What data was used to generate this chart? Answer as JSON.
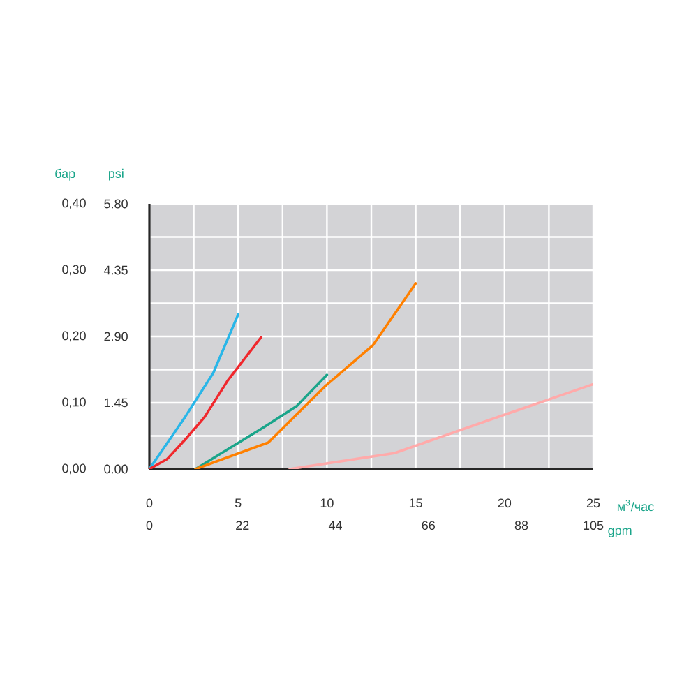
{
  "chart_data": {
    "type": "line",
    "ylabel": "бар",
    "y2label": "psi",
    "xlabel": "м$^{3}$/час",
    "x2label": "gpm",
    "xlim": [
      0,
      25
    ],
    "xticks": [
      0,
      5,
      10,
      15,
      20,
      25
    ],
    "x2lim": [
      0,
      105
    ],
    "x2ticks": [
      0,
      22,
      44,
      66,
      88,
      105
    ],
    "ylim": [
      0,
      0.4
    ],
    "yticks": [
      {
        "value": 0,
        "label": "0,00"
      },
      {
        "value": 0.1,
        "label": "0,10"
      },
      {
        "value": 0.2,
        "label": "0,20"
      },
      {
        "value": 0.3,
        "label": "0,30"
      },
      {
        "value": 0.4,
        "label": "0,40"
      }
    ],
    "y2lim": [
      0,
      5.8
    ],
    "y2ticks": [
      {
        "value": 0,
        "label": "0.00"
      },
      {
        "value": 1.45,
        "label": "1.45"
      },
      {
        "value": 2.9,
        "label": "2.90"
      },
      {
        "value": 4.35,
        "label": "4.35"
      },
      {
        "value": 5.8,
        "label": "5.80"
      }
    ],
    "grid": true,
    "line_style": "solid",
    "marker": "none",
    "series": [
      {
        "color": "#29b6e8",
        "x": [
          0,
          1.0,
          2.0,
          3.6,
          5.0
        ],
        "values": [
          0,
          0.039,
          0.078,
          0.145,
          0.233
        ]
      },
      {
        "color": "#f0282d",
        "x": [
          0,
          1.0,
          2.0,
          3.1,
          4.4,
          6.3
        ],
        "values": [
          0,
          0.015,
          0.044,
          0.078,
          0.133,
          0.199
        ]
      },
      {
        "color": "#1aa58a",
        "x": [
          2.6,
          6.5,
          8.3,
          10.0
        ],
        "values": [
          0,
          0.064,
          0.095,
          0.142
        ]
      },
      {
        "color": "#ff8000",
        "x": [
          2.6,
          6.7,
          9.9,
          12.6,
          15.0
        ],
        "values": [
          0,
          0.04,
          0.125,
          0.187,
          0.28
        ]
      },
      {
        "color": "#ffaaaa",
        "x": [
          7.9,
          13.8,
          19.9,
          25.0
        ],
        "values": [
          0,
          0.024,
          0.081,
          0.128
        ]
      }
    ]
  }
}
